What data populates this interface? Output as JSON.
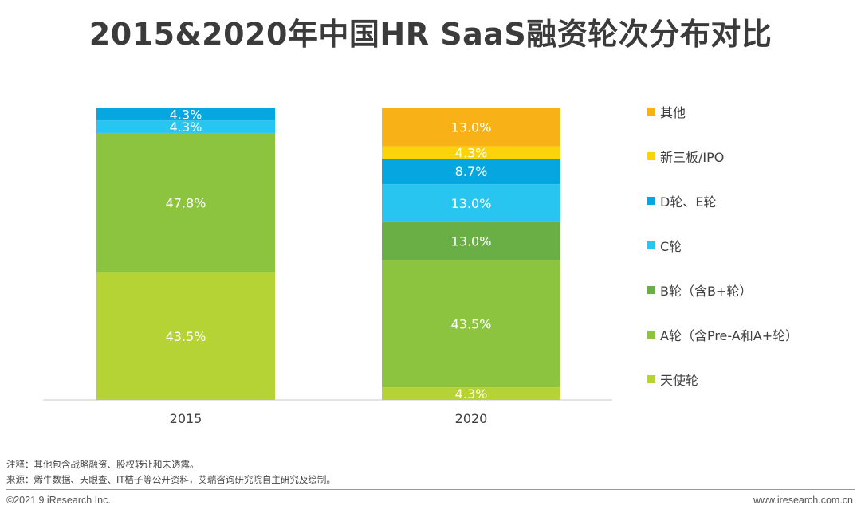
{
  "title": "2015&2020年中国HR SaaS融资轮次分布对比",
  "chart_data": {
    "type": "bar",
    "stacked": true,
    "categories": [
      "2015",
      "2020"
    ],
    "series": [
      {
        "name": "天使轮",
        "color": "#b5d334",
        "values": [
          43.5,
          4.3
        ],
        "labels": [
          "43.5%",
          "4.3%"
        ]
      },
      {
        "name": "A轮（含Pre-A和A+轮）",
        "color": "#8cc43f",
        "values": [
          47.8,
          43.5
        ],
        "labels": [
          "47.8%",
          "43.5%"
        ]
      },
      {
        "name": "B轮（含B+轮）",
        "color": "#6aae46",
        "values": [
          0,
          13.0
        ],
        "labels": [
          "",
          "13.0%"
        ]
      },
      {
        "name": "C轮",
        "color": "#27c5ef",
        "values": [
          4.3,
          13.0
        ],
        "labels": [
          "4.3%",
          "13.0%"
        ]
      },
      {
        "name": "D轮、E轮",
        "color": "#06a6e0",
        "values": [
          4.3,
          8.7
        ],
        "labels": [
          "4.3%",
          "8.7%"
        ]
      },
      {
        "name": "新三板/IPO",
        "color": "#fcd20b",
        "values": [
          0,
          4.3
        ],
        "labels": [
          "",
          "4.3%"
        ]
      },
      {
        "name": "其他",
        "color": "#f8b218",
        "values": [
          0,
          13.0
        ],
        "labels": [
          "",
          "13.0%"
        ]
      }
    ],
    "ylim": [
      0,
      100
    ],
    "legend_position": "right"
  },
  "notes": {
    "note1": "注释：其他包含战略融资、股权转让和未透露。",
    "note2": "来源：烯牛数据、天眼查、IT桔子等公开资料，艾瑞咨询研究院自主研究及绘制。"
  },
  "footer": {
    "copyright": "©2021.9 iResearch Inc.",
    "website": "www.iresearch.com.cn"
  }
}
